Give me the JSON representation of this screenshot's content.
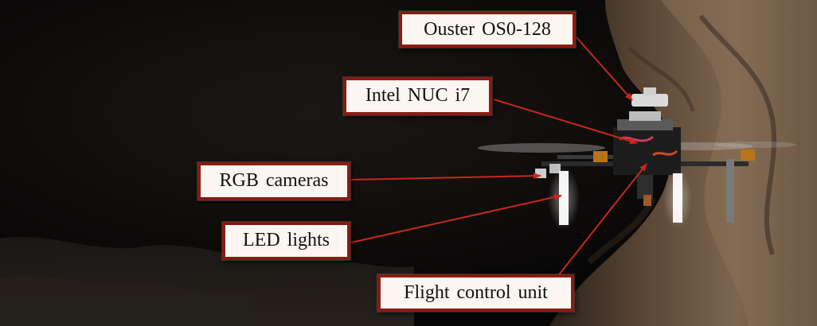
{
  "figure": {
    "description_hidden": false,
    "labels": {
      "ouster": "Ouster OS0-128",
      "nuc": "Intel NUC i7",
      "rgb": "RGB cameras",
      "led": "LED lights",
      "fcu": "Flight control unit"
    }
  },
  "colors": {
    "label_border": "#8b1a12",
    "label_fill": "#fbf6f1",
    "arrow": "#c8281c",
    "cave_dark": "#0b0a09",
    "rock": "#6b5440"
  }
}
